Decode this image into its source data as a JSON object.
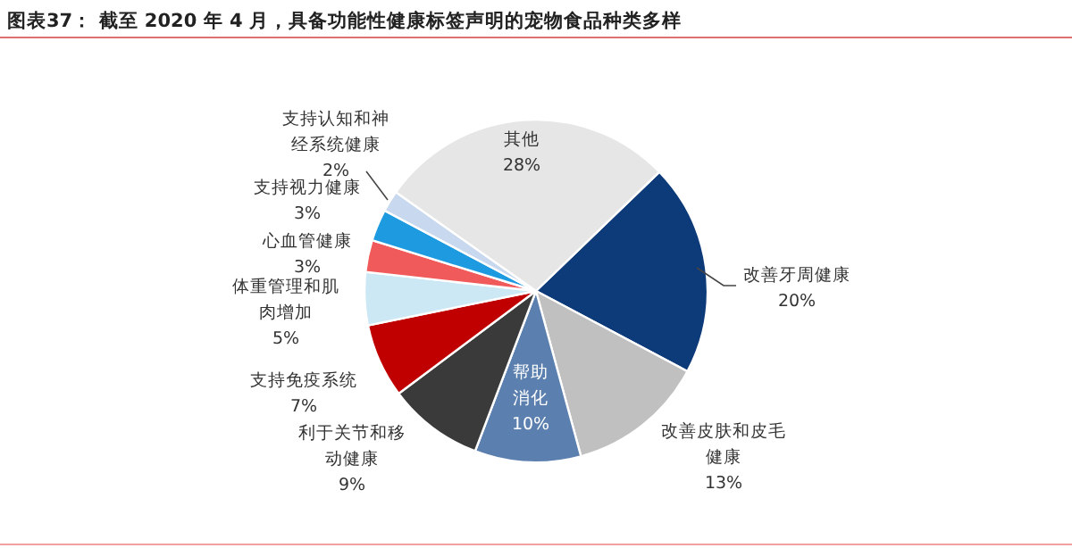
{
  "chart_data": {
    "type": "pie",
    "title": "图表37：  截至 2020 年 4 月，具备功能性健康标签声明的宠物食品种类多样",
    "categories": [
      "改善牙周健康",
      "改善皮肤和皮毛健康",
      "帮助消化",
      "利于关节和移动健康",
      "支持免疫系统",
      "体重管理和肌肉增加",
      "心血管健康",
      "支持视力健康",
      "支持认知和神经系统健康",
      "其他"
    ],
    "values": [
      20,
      13,
      10,
      9,
      7,
      5,
      3,
      3,
      2,
      28
    ],
    "value_labels": [
      "20%",
      "13%",
      "10%",
      "9%",
      "7%",
      "5%",
      "3%",
      "3%",
      "2%",
      "28%"
    ],
    "colors": [
      "#0d3a78",
      "#c0c0c0",
      "#5b7fae",
      "#3a3a3a",
      "#c00000",
      "#cde8f5",
      "#f05a5a",
      "#1e9be0",
      "#c8d8ee",
      "#e6e6e6"
    ]
  }
}
